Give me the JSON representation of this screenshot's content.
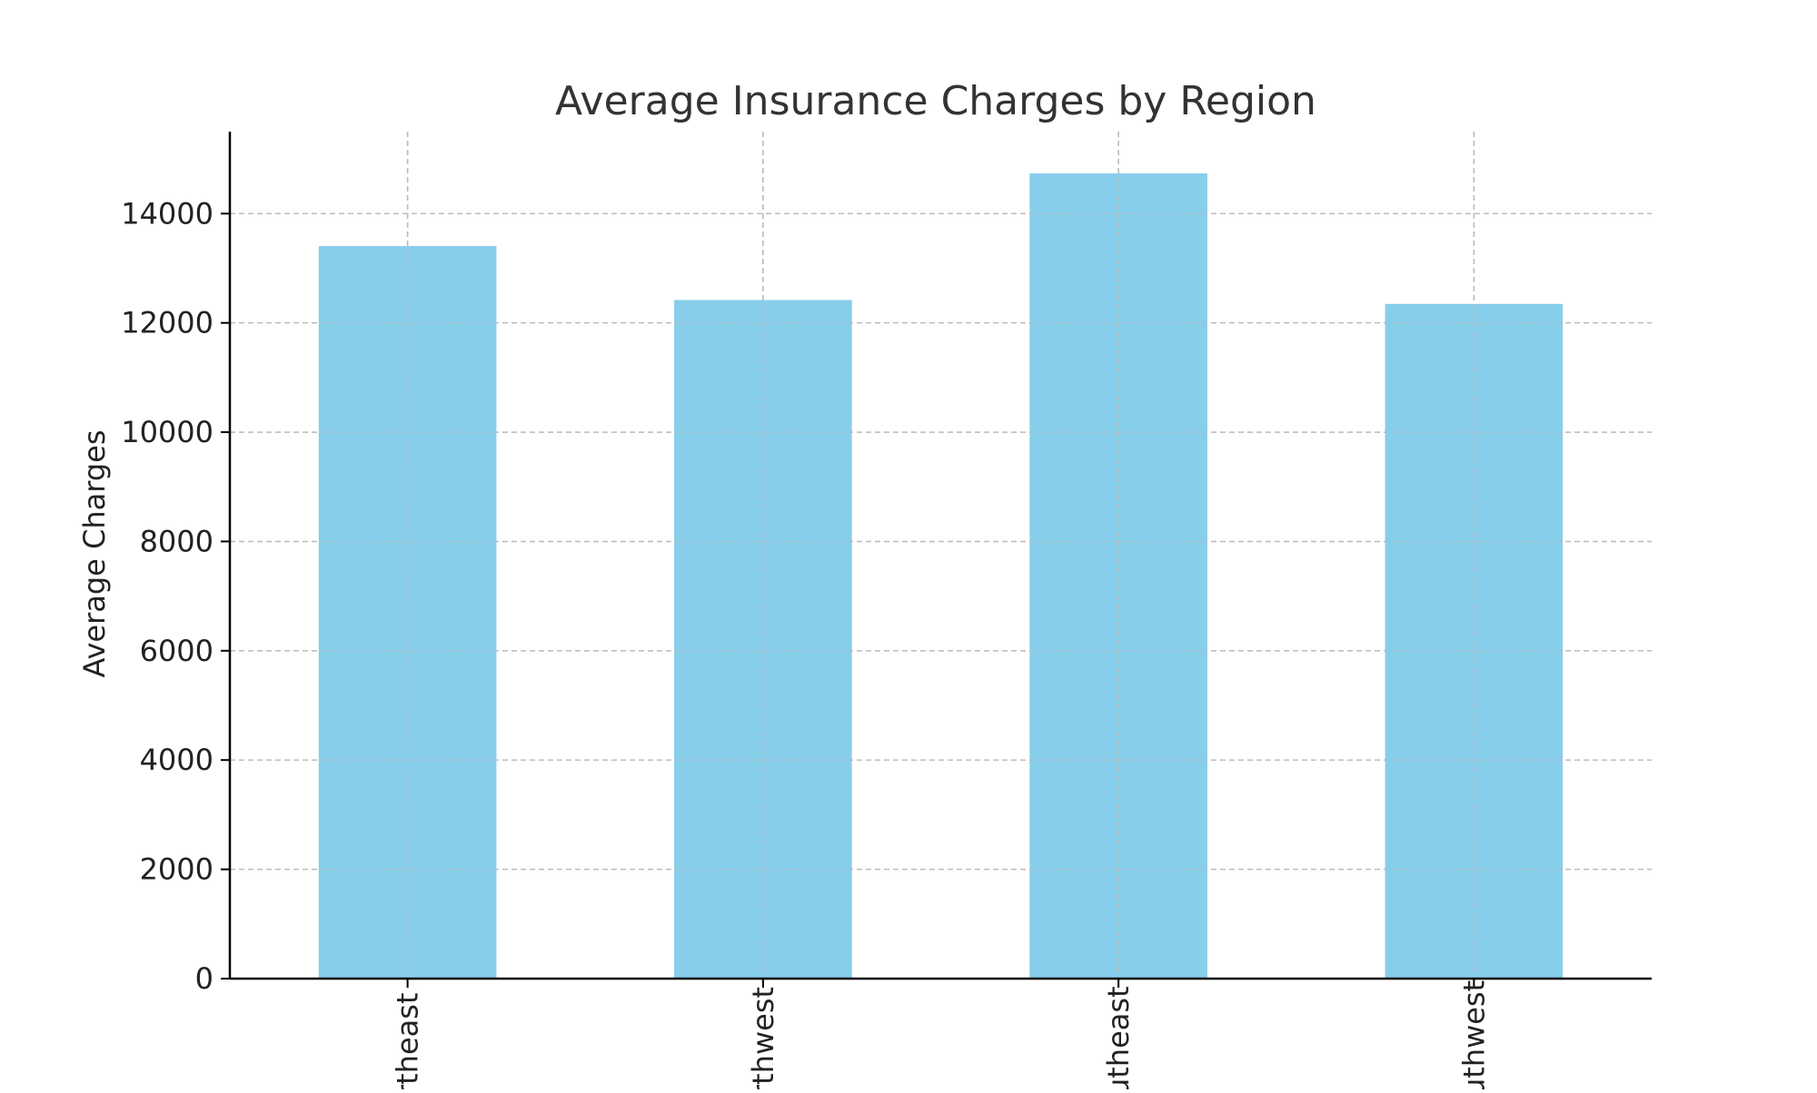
{
  "chart_data": {
    "type": "bar",
    "title": "Average Insurance Charges by Region",
    "xlabel": "",
    "ylabel": "Average Charges",
    "categories": [
      "northeast",
      "northwest",
      "southeast",
      "southwest"
    ],
    "visible_tick_labels": [
      "rtheast",
      "rthwest",
      "utheast",
      "uthwest"
    ],
    "values": [
      13406,
      12418,
      14735,
      12347
    ],
    "ylim": [
      0,
      15500
    ],
    "yticks": [
      0,
      2000,
      4000,
      6000,
      8000,
      10000,
      12000,
      14000
    ],
    "ytick_labels": [
      "0",
      "2000",
      "4000",
      "6000",
      "8000",
      "10000",
      "12000",
      "14000"
    ],
    "grid": true,
    "grid_style": "dashed",
    "bar_color": "#87CEEB",
    "legend": "none"
  }
}
